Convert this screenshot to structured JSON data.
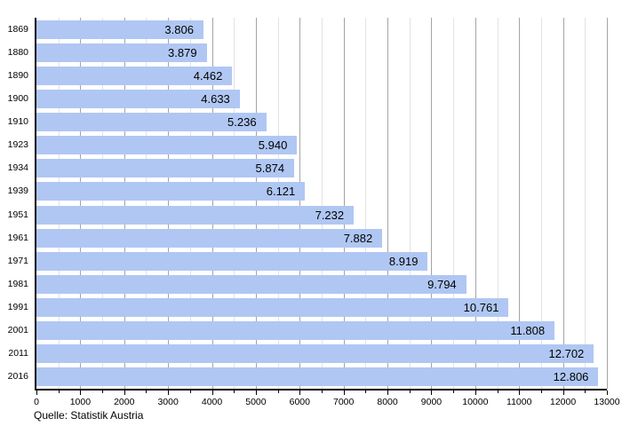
{
  "chart_data": {
    "type": "bar",
    "orientation": "horizontal",
    "title": "",
    "xlabel": "",
    "ylabel": "",
    "categories": [
      "1869",
      "1880",
      "1890",
      "1900",
      "1910",
      "1923",
      "1934",
      "1939",
      "1951",
      "1961",
      "1971",
      "1981",
      "1991",
      "2001",
      "2011",
      "2016"
    ],
    "values": [
      3806,
      3879,
      4462,
      4633,
      5236,
      5940,
      5874,
      6121,
      7232,
      7882,
      8919,
      9794,
      10761,
      11808,
      12702,
      12806
    ],
    "value_labels": [
      "3.806",
      "3.879",
      "4.462",
      "4.633",
      "5.236",
      "5.940",
      "5.874",
      "6.121",
      "7.232",
      "7.882",
      "8.919",
      "9.794",
      "10.761",
      "11.808",
      "12.702",
      "12.806"
    ],
    "xlim": [
      0,
      13000
    ],
    "x_major_tick_step": 1000,
    "x_minor_tick_step": 500,
    "x_tick_labels": [
      "0",
      "1000",
      "2000",
      "3000",
      "4000",
      "5000",
      "6000",
      "7000",
      "8000",
      "9000",
      "10000",
      "11000",
      "12000",
      "13000"
    ],
    "grid": "vertical, major every 1000, minor every 500",
    "legend": "none",
    "colors": {
      "bar": "#b0c7f3",
      "major_grid": "#a4a4a4",
      "minor_grid": "#e3e3e3",
      "axis": "#000000",
      "text": "#000000",
      "background": "#ffffff"
    }
  },
  "source": {
    "label": "Quelle: Statistik Austria"
  }
}
